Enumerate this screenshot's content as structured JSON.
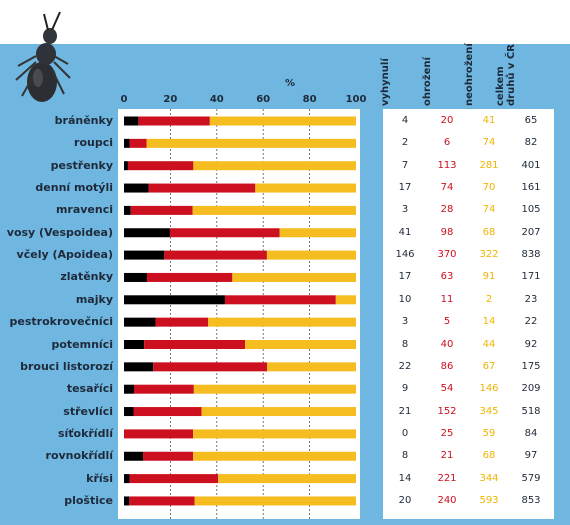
{
  "chart_data": {
    "type": "bar",
    "stacked": true,
    "orientation": "horizontal",
    "title": "%",
    "xlim": [
      0,
      100
    ],
    "xticks": [
      "0",
      "20",
      "40",
      "60",
      "80",
      "100"
    ],
    "categories": [
      "bráněnky",
      "roupci",
      "pestřenky",
      "denní motýli",
      "mravenci",
      "vosy (Vespoidea)",
      "včely (Apoidea)",
      "zlatěnky",
      "majky",
      "pestrokrovečníci",
      "potemníci",
      "brouci listorozí",
      "tesaříci",
      "střevlíci",
      "síťokřídlí",
      "rovnokřídlí",
      "křísi",
      "ploštice"
    ],
    "series": [
      {
        "color": "#000000",
        "values": [
          6.2,
          2.4,
          1.7,
          10.6,
          2.9,
          19.8,
          17.4,
          9.9,
          43.5,
          13.6,
          8.7,
          12.6,
          4.3,
          4.1,
          0.0,
          8.2,
          2.4,
          2.3
        ]
      },
      {
        "color": "#cc1020",
        "values": [
          30.8,
          7.3,
          28.2,
          46.0,
          26.7,
          47.3,
          44.2,
          36.8,
          47.8,
          22.7,
          43.5,
          49.1,
          25.8,
          29.3,
          29.8,
          21.6,
          38.2,
          28.1
        ]
      },
      {
        "color": "#f5bd1f",
        "values": [
          63.0,
          90.3,
          70.1,
          43.4,
          70.4,
          32.9,
          38.4,
          53.3,
          8.7,
          63.7,
          47.8,
          38.3,
          69.9,
          66.6,
          70.2,
          70.2,
          59.4,
          69.6
        ]
      }
    ]
  },
  "table": {
    "headers": [
      "vyhynulí",
      "ohrožení",
      "neohrožení",
      "celkem druhů v ČR"
    ],
    "colors": [
      "#1e2a3a",
      "#cc1020",
      "#f0b400",
      "#1e2a3a"
    ],
    "rows": [
      [
        "4",
        "20",
        "41",
        "65"
      ],
      [
        "2",
        "6",
        "74",
        "82"
      ],
      [
        "7",
        "113",
        "281",
        "401"
      ],
      [
        "17",
        "74",
        "70",
        "161"
      ],
      [
        "3",
        "28",
        "74",
        "105"
      ],
      [
        "41",
        "98",
        "68",
        "207"
      ],
      [
        "146",
        "370",
        "322",
        "838"
      ],
      [
        "17",
        "63",
        "91",
        "171"
      ],
      [
        "10",
        "11",
        "2",
        "23"
      ],
      [
        "3",
        "5",
        "14",
        "22"
      ],
      [
        "8",
        "40",
        "44",
        "92"
      ],
      [
        "22",
        "86",
        "67",
        "175"
      ],
      [
        "9",
        "54",
        "146",
        "209"
      ],
      [
        "21",
        "152",
        "345",
        "518"
      ],
      [
        "0",
        "25",
        "59",
        "84"
      ],
      [
        "8",
        "21",
        "68",
        "97"
      ],
      [
        "14",
        "221",
        "344",
        "579"
      ],
      [
        "20",
        "240",
        "593",
        "853"
      ]
    ]
  }
}
